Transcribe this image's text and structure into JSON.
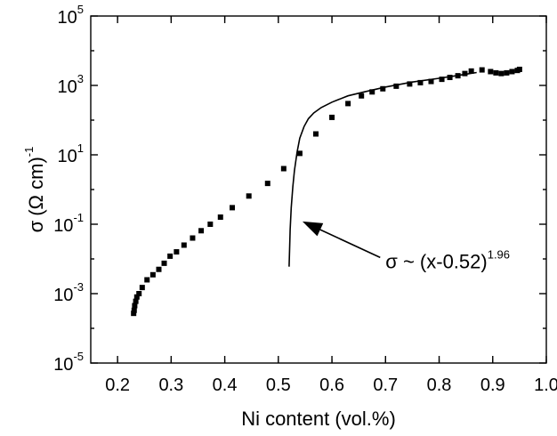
{
  "chart_data": {
    "type": "scatter",
    "xlabel": "Ni content (vol.%)",
    "ylabel": {
      "sigma": "σ",
      "units": "(Ω cm)",
      "exp": "-1"
    },
    "xlim": [
      0.15,
      1.0
    ],
    "ylim": [
      1e-05,
      100000.0
    ],
    "yscale": "log",
    "x_ticks": [
      "0.2",
      "0.3",
      "0.4",
      "0.5",
      "0.6",
      "0.7",
      "0.8",
      "0.9",
      "1.0"
    ],
    "x_tick_values": [
      0.2,
      0.3,
      0.4,
      0.5,
      0.6,
      0.7,
      0.8,
      0.9,
      1.0
    ],
    "y_ticks": [
      {
        "value": 1e-05,
        "base": "10",
        "exp": "-5"
      },
      {
        "value": 0.001,
        "base": "10",
        "exp": "-3"
      },
      {
        "value": 0.1,
        "base": "10",
        "exp": "-1"
      },
      {
        "value": 10.0,
        "base": "10",
        "exp": "1"
      },
      {
        "value": 1000.0,
        "base": "10",
        "exp": "3"
      },
      {
        "value": 100000.0,
        "base": "10",
        "exp": "5"
      }
    ],
    "grid": false,
    "legend": "none",
    "series": [
      {
        "type": "scatter",
        "marker": "square",
        "x": [
          0.23,
          0.231,
          0.232,
          0.234,
          0.236,
          0.24,
          0.246,
          0.255,
          0.266,
          0.277,
          0.287,
          0.298,
          0.31,
          0.324,
          0.34,
          0.356,
          0.373,
          0.392,
          0.414,
          0.445,
          0.48,
          0.51,
          0.54,
          0.57,
          0.6,
          0.63,
          0.655,
          0.675,
          0.695,
          0.72,
          0.745,
          0.765,
          0.785,
          0.805,
          0.82,
          0.835,
          0.848,
          0.86,
          0.88,
          0.896,
          0.906,
          0.916,
          0.926,
          0.936,
          0.946,
          0.95
        ],
        "y": [
          0.00027,
          0.00033,
          0.00045,
          0.0006,
          0.0008,
          0.001,
          0.0015,
          0.0025,
          0.0035,
          0.005,
          0.0075,
          0.012,
          0.016,
          0.025,
          0.04,
          0.065,
          0.1,
          0.16,
          0.3,
          0.65,
          1.5,
          4.0,
          11.0,
          40.0,
          120.0,
          300.0,
          500.0,
          650.0,
          800.0,
          950.0,
          1100.0,
          1200.0,
          1300.0,
          1500.0,
          1700.0,
          1900.0,
          2200.0,
          2600.0,
          2800.0,
          2500.0,
          2300.0,
          2200.0,
          2300.0,
          2500.0,
          2700.0,
          2900.0
        ]
      },
      {
        "type": "line",
        "x": [
          0.52,
          0.521,
          0.522,
          0.524,
          0.527,
          0.53,
          0.535,
          0.54,
          0.548,
          0.556,
          0.566,
          0.58,
          0.6,
          0.63,
          0.66,
          0.7,
          0.75,
          0.8,
          0.84,
          0.87
        ],
        "y": [
          0.006,
          0.02,
          0.07,
          0.3,
          1.2,
          3.5,
          12.0,
          30.0,
          65.0,
          110.0,
          160.0,
          230.0,
          330.0,
          500.0,
          650.0,
          900.0,
          1250.0,
          1600.0,
          2000.0,
          2350.0
        ]
      }
    ],
    "annotation": {
      "text": "σ ~ (x-0.52)",
      "exp": "1.96",
      "arrow_from": [
        0.69,
        0.011
      ],
      "arrow_to": [
        0.545,
        0.12
      ]
    }
  }
}
